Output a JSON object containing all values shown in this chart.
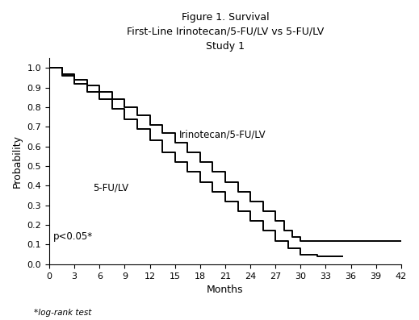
{
  "title_line1": "Figure 1. Survival",
  "title_line2": "First-Line Irinotecan/5-FU/LV vs 5-FU/LV",
  "title_line3": "Study 1",
  "xlabel": "Months",
  "ylabel": "Probability",
  "xlim": [
    0,
    42
  ],
  "ylim": [
    0,
    1.05
  ],
  "xticks": [
    0,
    3,
    6,
    9,
    12,
    15,
    18,
    21,
    24,
    27,
    30,
    33,
    36,
    39,
    42
  ],
  "yticks": [
    0.0,
    0.1,
    0.2,
    0.3,
    0.4,
    0.5,
    0.6,
    0.7,
    0.8,
    0.9,
    1.0
  ],
  "pvalue_text": "p<0.05*",
  "footnote": "*log-rank test",
  "label_iri": "Irinotecan/5-FU/LV",
  "label_fu": "5-FU/LV",
  "iri_times": [
    0,
    1.5,
    3,
    4.5,
    6,
    7.5,
    9,
    10.5,
    12,
    13.5,
    15,
    16.5,
    18,
    19.5,
    21,
    22.5,
    24,
    25.5,
    27,
    28,
    29,
    30,
    31,
    42
  ],
  "iri_surv": [
    1.0,
    0.97,
    0.94,
    0.91,
    0.88,
    0.84,
    0.8,
    0.76,
    0.71,
    0.67,
    0.62,
    0.57,
    0.52,
    0.47,
    0.42,
    0.37,
    0.32,
    0.27,
    0.22,
    0.17,
    0.14,
    0.12,
    0.12,
    0.12
  ],
  "fu_times": [
    0,
    1.5,
    3,
    4.5,
    6,
    7.5,
    9,
    10.5,
    12,
    13.5,
    15,
    16.5,
    18,
    19.5,
    21,
    22.5,
    24,
    25.5,
    27,
    28.5,
    30,
    31,
    32,
    33,
    34,
    35
  ],
  "fu_surv": [
    1.0,
    0.96,
    0.92,
    0.88,
    0.84,
    0.79,
    0.74,
    0.69,
    0.63,
    0.57,
    0.52,
    0.47,
    0.42,
    0.37,
    0.32,
    0.27,
    0.22,
    0.17,
    0.12,
    0.08,
    0.05,
    0.05,
    0.04,
    0.04,
    0.04,
    0.04
  ],
  "line_color": "#000000",
  "bg_color": "#ffffff",
  "title_fontsize": 9,
  "axis_label_fontsize": 9,
  "tick_fontsize": 8,
  "annotation_fontsize": 8.5,
  "footnote_fontsize": 7.5
}
